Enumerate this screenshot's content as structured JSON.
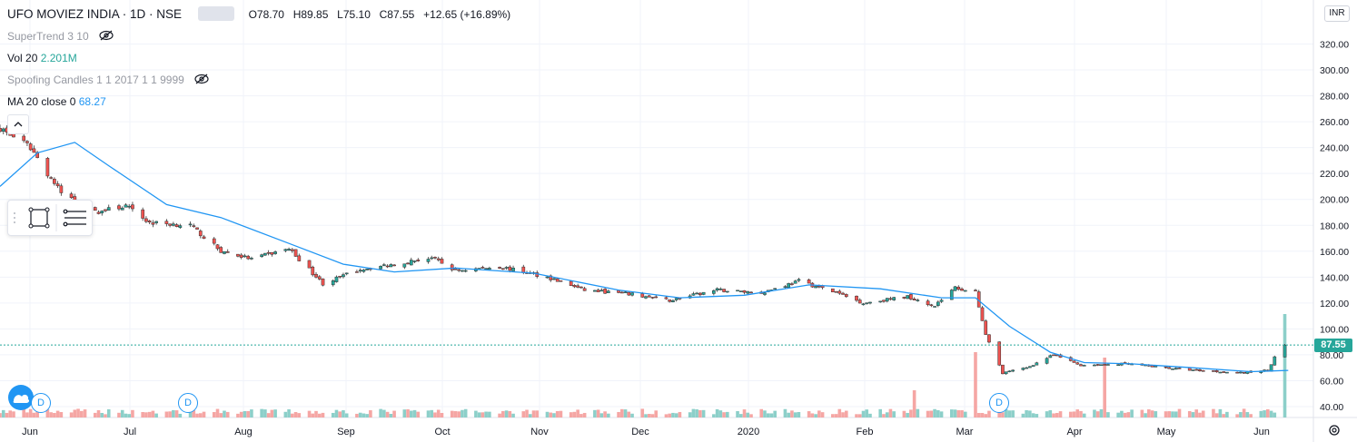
{
  "header": {
    "symbol": "UFO MOVIEZ INDIA · 1D · NSE",
    "ohlc_o": "O78.70",
    "ohlc_h": "H89.85",
    "ohlc_l": "L75.10",
    "ohlc_c": "C87.55",
    "ohlc_change": "+12.65 (+16.89%)"
  },
  "indicators": {
    "supertrend": "SuperTrend 3 10",
    "vol_label": "Vol 20",
    "vol_value": "2.201M",
    "candles": "Spoofing Candles 1 1 2017 1 1 9999",
    "ma_label": "MA 20 close 0",
    "ma_value": "68.27"
  },
  "currency": "INR",
  "last_price_label": "87.55",
  "event_marker_label": "D",
  "icons": {
    "hide_supertrend": "eye-slash-icon",
    "hide_candles": "eye-slash-icon",
    "collapse": "chevron-up-icon",
    "rectangle_tool": "rectangle-icon",
    "lines_tool": "lines-icon",
    "settings": "gear-icon",
    "logo": "tradingview-logo-icon"
  },
  "colors": {
    "up": "#26a69a",
    "down": "#ef5350",
    "ma": "#2196f3",
    "vol_up": "#8ccfc9",
    "vol_down": "#f5a6a4",
    "grid": "#f0f3fa"
  },
  "chart_data": {
    "type": "candlestick",
    "y_ticks": [
      40,
      60,
      80,
      100,
      120,
      140,
      160,
      180,
      200,
      220,
      240,
      260,
      280,
      300,
      320
    ],
    "ylim": [
      31,
      350
    ],
    "x_ticks": [
      "Jun",
      "Jul",
      "Aug",
      "Sep",
      "Oct",
      "Nov",
      "Dec",
      "2020",
      "Feb",
      "Mar",
      "Apr",
      "May",
      "Jun"
    ],
    "last_price": 87.55,
    "ma_series": [
      {
        "date": "2019-05-27",
        "value": 210
      },
      {
        "date": "2019-06-07",
        "value": 236
      },
      {
        "date": "2019-06-18",
        "value": 244
      },
      {
        "date": "2019-06-28",
        "value": 226
      },
      {
        "date": "2019-07-15",
        "value": 196
      },
      {
        "date": "2019-07-31",
        "value": 186
      },
      {
        "date": "2019-08-20",
        "value": 166
      },
      {
        "date": "2019-09-05",
        "value": 150
      },
      {
        "date": "2019-09-20",
        "value": 144
      },
      {
        "date": "2019-10-08",
        "value": 147
      },
      {
        "date": "2019-10-31",
        "value": 143
      },
      {
        "date": "2019-11-25",
        "value": 130
      },
      {
        "date": "2019-12-13",
        "value": 124
      },
      {
        "date": "2020-01-01",
        "value": 126
      },
      {
        "date": "2020-01-20",
        "value": 134
      },
      {
        "date": "2020-02-10",
        "value": 131
      },
      {
        "date": "2020-02-28",
        "value": 124
      },
      {
        "date": "2020-03-09",
        "value": 124
      },
      {
        "date": "2020-03-19",
        "value": 102
      },
      {
        "date": "2020-03-31",
        "value": 82
      },
      {
        "date": "2020-04-10",
        "value": 74
      },
      {
        "date": "2020-04-24",
        "value": 73
      },
      {
        "date": "2020-05-12",
        "value": 70
      },
      {
        "date": "2020-05-29",
        "value": 67
      },
      {
        "date": "2020-06-09",
        "value": 68
      }
    ],
    "price_path": [
      {
        "date": "2019-05-27",
        "value": 255
      },
      {
        "date": "2019-06-05",
        "value": 240
      },
      {
        "date": "2019-06-10",
        "value": 220
      },
      {
        "date": "2019-06-14",
        "value": 205
      },
      {
        "date": "2019-06-24",
        "value": 190
      },
      {
        "date": "2019-07-03",
        "value": 195
      },
      {
        "date": "2019-07-10",
        "value": 182
      },
      {
        "date": "2019-07-22",
        "value": 180
      },
      {
        "date": "2019-07-31",
        "value": 160
      },
      {
        "date": "2019-08-09",
        "value": 154
      },
      {
        "date": "2019-08-20",
        "value": 162
      },
      {
        "date": "2019-08-30",
        "value": 135
      },
      {
        "date": "2019-09-10",
        "value": 146
      },
      {
        "date": "2019-09-20",
        "value": 150
      },
      {
        "date": "2019-10-01",
        "value": 155
      },
      {
        "date": "2019-10-08",
        "value": 145
      },
      {
        "date": "2019-10-21",
        "value": 148
      },
      {
        "date": "2019-11-04",
        "value": 140
      },
      {
        "date": "2019-11-15",
        "value": 130
      },
      {
        "date": "2019-11-28",
        "value": 127
      },
      {
        "date": "2019-12-10",
        "value": 122
      },
      {
        "date": "2019-12-24",
        "value": 130
      },
      {
        "date": "2020-01-06",
        "value": 128
      },
      {
        "date": "2020-01-17",
        "value": 137
      },
      {
        "date": "2020-01-28",
        "value": 128
      },
      {
        "date": "2020-02-05",
        "value": 120
      },
      {
        "date": "2020-02-18",
        "value": 125
      },
      {
        "date": "2020-02-26",
        "value": 118
      },
      {
        "date": "2020-03-03",
        "value": 132
      },
      {
        "date": "2020-03-09",
        "value": 128
      },
      {
        "date": "2020-03-12",
        "value": 95
      },
      {
        "date": "2020-03-17",
        "value": 66
      },
      {
        "date": "2020-03-24",
        "value": 70
      },
      {
        "date": "2020-04-01",
        "value": 80
      },
      {
        "date": "2020-04-09",
        "value": 72
      },
      {
        "date": "2020-04-22",
        "value": 73
      },
      {
        "date": "2020-05-08",
        "value": 69
      },
      {
        "date": "2020-05-26",
        "value": 66
      },
      {
        "date": "2020-06-03",
        "value": 68
      },
      {
        "date": "2020-06-05",
        "value": 78
      },
      {
        "date": "2020-06-08",
        "value": 87.55
      }
    ],
    "volume_note": "daily volume histogram along bottom (Vol 20, last 2.201M)",
    "volume_spikes": [
      {
        "date": "2020-02-20",
        "level": 0.25
      },
      {
        "date": "2020-03-09",
        "level": 0.6
      },
      {
        "date": "2020-04-16",
        "level": 0.55
      },
      {
        "date": "2020-06-08",
        "level": 0.95
      }
    ],
    "event_markers": [
      "2019-06-03",
      "2019-07-17",
      "2020-03-10"
    ]
  }
}
